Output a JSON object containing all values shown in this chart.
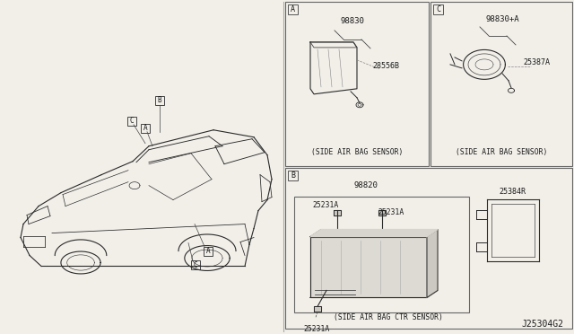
{
  "bg_color": "#f2efe9",
  "diagram_id": "J25304G2",
  "panel_A": {
    "label": "A",
    "part_number": "98830",
    "sub_part": "28556B",
    "caption": "(SIDE AIR BAG SENSOR)"
  },
  "panel_C": {
    "label": "C",
    "part_number": "98830+A",
    "sub_part": "25387A",
    "caption": "(SIDE AIR BAG SENSOR)"
  },
  "panel_B": {
    "label": "B",
    "part_number": "98820",
    "sub_parts": [
      "25231A",
      "25231A",
      "25231A"
    ],
    "extra_part": "25384R",
    "caption": "(SIDE AIR BAG CTR SENSOR)"
  }
}
